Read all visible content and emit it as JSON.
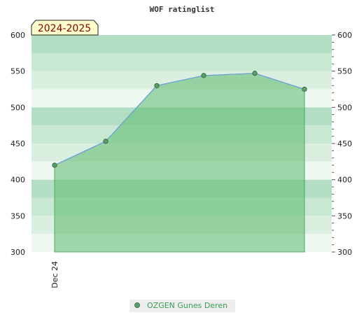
{
  "chart_data": {
    "type": "area",
    "title": "WOF ratinglist",
    "season_label": "2024-2025",
    "x_tick_labels": [
      "Dec 24"
    ],
    "ylim": [
      300,
      600
    ],
    "y_ticks": [
      300,
      350,
      400,
      450,
      500,
      550,
      600
    ],
    "series": [
      {
        "name": "OZGEN Gunes Deren",
        "values": [
          420,
          453,
          530,
          544,
          547,
          525
        ]
      }
    ],
    "grid": true,
    "legend_position": "bottom-center"
  },
  "colors": {
    "area_fill": "#5cba6e",
    "line": "#6a9fd8",
    "marker": "#5a9e6a",
    "band_dark": "#b3dec3",
    "band_mid": "#c8e8d2",
    "band_light": "#dbefe1",
    "band_lightest": "#eff8f1",
    "season_bg": "#ffffcc",
    "legend_bg": "#eeeeee"
  }
}
